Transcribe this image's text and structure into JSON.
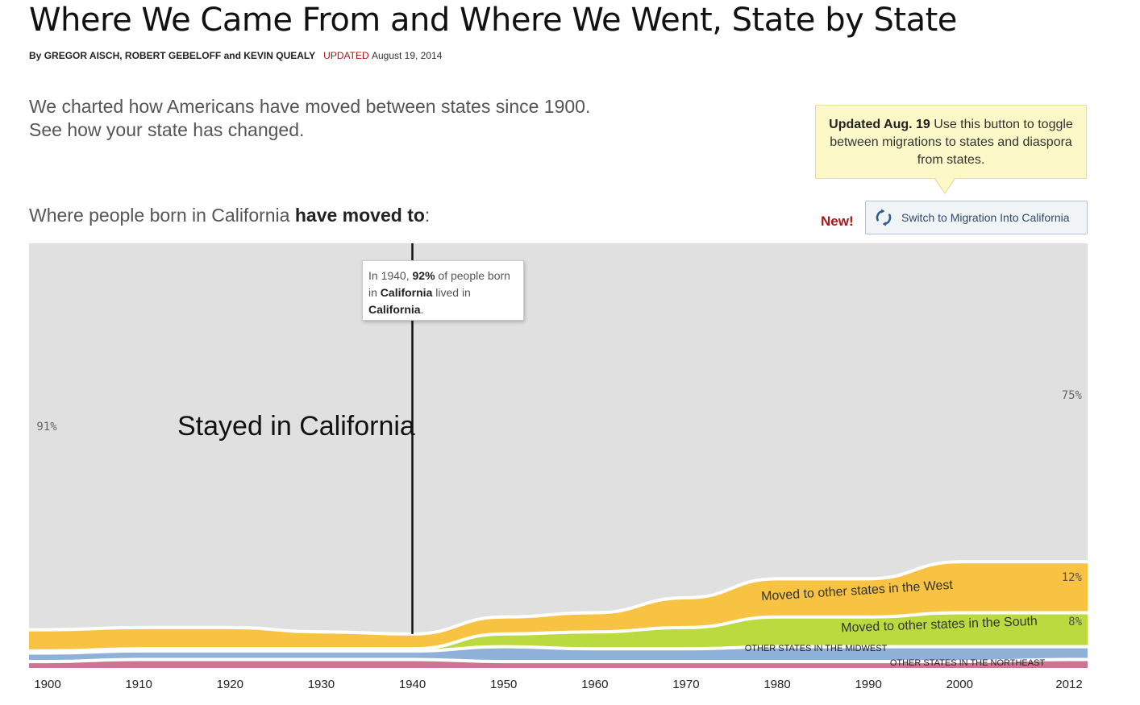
{
  "header": {
    "title": "Where We Came From and Where We Went, State by State",
    "byline_prefix": "By ",
    "authors": "GREGOR AISCH, ROBERT GEBELOFF and KEVIN QUEALY",
    "updated_label": "UPDATED",
    "updated_date": "August 19, 2014"
  },
  "intro": {
    "line1": "We charted how Americans have moved between states since 1900.",
    "line2": "See how your state has changed."
  },
  "callout": {
    "bold": "Updated Aug. 19",
    "text": " Use this button to toggle between migrations to states and diaspora from states."
  },
  "controls": {
    "new_label": "New!",
    "switch_label": "Switch to Migration Into California",
    "switch_icon": "refresh-icon"
  },
  "subhead": {
    "prefix": "Where people born in California ",
    "bold": "have moved to",
    "suffix": ":"
  },
  "tooltip": {
    "t1": "In 1940, ",
    "b1": "92%",
    "t2": " of people born in ",
    "b2": "California",
    "t3": " lived in ",
    "b3": "California",
    "t4": "."
  },
  "colors": {
    "background": "#e0e0e0",
    "stayed": "#e0e0e0",
    "west": "#f8c343",
    "south": "#bbda3f",
    "midwest": "#8fb0d8",
    "northeast": "#cb7593",
    "separator": "#ffffff",
    "marker": "#111111"
  },
  "chart_data": {
    "type": "area",
    "title": "Where people born in California have moved to",
    "x": [
      1900,
      1910,
      1920,
      1930,
      1940,
      1950,
      1960,
      1970,
      1980,
      1990,
      2000,
      2012
    ],
    "tick_labels": [
      "1900",
      "1910",
      "1920",
      "1930",
      "1940",
      "1950",
      "1960",
      "1970",
      "1980",
      "1990",
      "2000",
      "2012"
    ],
    "ylim": [
      0,
      100
    ],
    "grid": true,
    "series": [
      {
        "name": "OTHER STATES IN THE NORTHEAST",
        "values": [
          1.5,
          2,
          2,
          2,
          2,
          1.5,
          1.5,
          1.5,
          1.5,
          1.5,
          1.5,
          2
        ]
      },
      {
        "name": "OTHER STATES IN THE MIDWEST",
        "values": [
          2,
          2,
          2,
          2,
          2,
          3.5,
          3,
          3,
          3.5,
          3.5,
          3.5,
          3
        ]
      },
      {
        "name": "Moved to other states in the South",
        "values": [
          0.5,
          0.5,
          0.5,
          0.5,
          0.5,
          3,
          4,
          5,
          7,
          7,
          8,
          8
        ]
      },
      {
        "name": "Moved to other states in the West",
        "values": [
          5,
          5,
          5,
          4,
          3.5,
          4,
          4.5,
          7,
          9,
          9,
          12,
          12
        ]
      },
      {
        "name": "Stayed in California",
        "values": [
          91,
          90.5,
          90.5,
          91.5,
          92,
          88,
          87,
          83.5,
          79,
          79,
          75,
          75
        ]
      }
    ],
    "value_labels": {
      "stayed_start": "91%",
      "stayed_end": "75%",
      "west_end": "12%",
      "south_end": "8%"
    },
    "annotations": {
      "stayed": "Stayed in California",
      "west": "Moved to other states in the West",
      "south": "Moved to other states in the South",
      "midwest": "OTHER STATES IN THE MIDWEST",
      "northeast": "OTHER STATES IN THE NORTHEAST"
    },
    "highlight_year": 1940
  }
}
